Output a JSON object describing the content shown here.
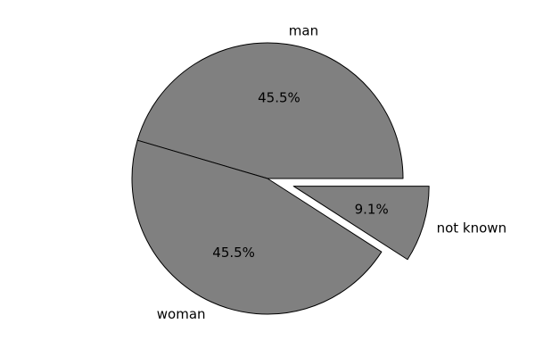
{
  "chart_data": {
    "type": "pie",
    "title": "",
    "slices": [
      {
        "label": "man",
        "value": 45.5,
        "pct_label": "45.5%",
        "color": "#808080",
        "explode": 0.0
      },
      {
        "label": "woman",
        "value": 45.5,
        "pct_label": "45.5%",
        "color": "#808080",
        "explode": 0.0
      },
      {
        "label": "not known",
        "value": 9.1,
        "pct_label": "9.1%",
        "color": "#808080",
        "explode": 0.2
      }
    ],
    "start_angle_deg": 0,
    "direction": "counterclockwise",
    "edge_color": "#000000",
    "legend": "none"
  }
}
